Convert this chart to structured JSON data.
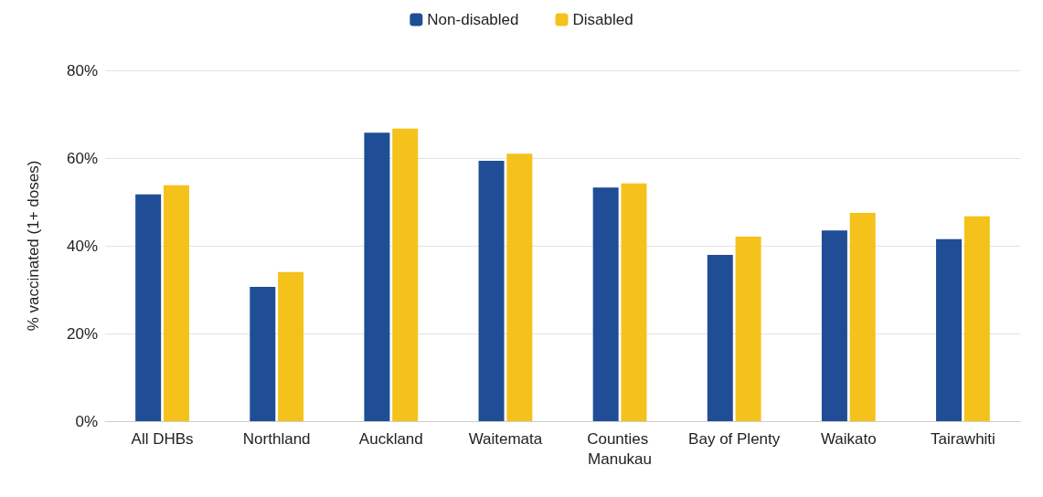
{
  "chart_data": {
    "type": "bar",
    "ylabel": "% vaccinated (1+ doses)",
    "categories": [
      "All DHBs",
      "Northland",
      "Auckland",
      "Waitemata",
      "Counties Manukau",
      "Bay of Plenty",
      "Waikato",
      "Tairawhiti"
    ],
    "series": [
      {
        "name": "Non-disabled",
        "color": "#1f4e96",
        "values": [
          51.7,
          30.6,
          65.8,
          59.4,
          53.3,
          37.9,
          43.5,
          41.5
        ]
      },
      {
        "name": "Disabled",
        "color": "#f5c21b",
        "values": [
          53.8,
          34,
          66.7,
          61,
          54.2,
          42.1,
          47.5,
          46.7
        ]
      }
    ],
    "ylim": [
      0,
      80
    ],
    "yticks": [
      {
        "value": 0,
        "label": "0%"
      },
      {
        "value": 20,
        "label": "20%"
      },
      {
        "value": 40,
        "label": "40%"
      },
      {
        "value": 60,
        "label": "60%"
      },
      {
        "value": 80,
        "label": "80%"
      }
    ],
    "grid": "y",
    "legend": "top"
  }
}
